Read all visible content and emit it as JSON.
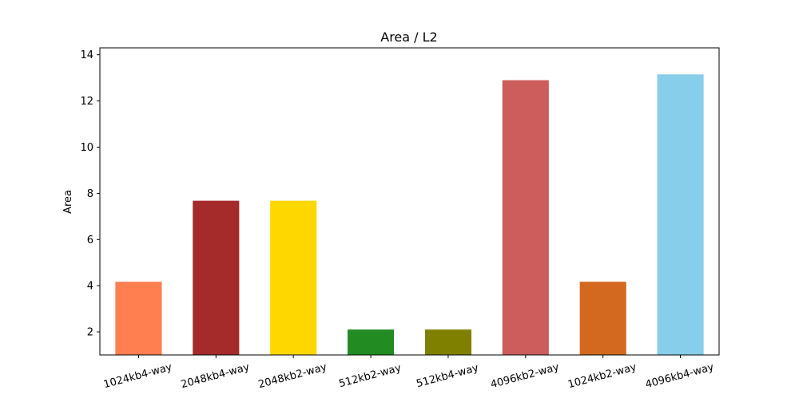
{
  "chart_data": {
    "type": "bar",
    "title": "Area / L2",
    "xlabel": "",
    "ylabel": "Area",
    "categories": [
      "1024kb4-way",
      "2048kb4-way",
      "2048kb2-way",
      "512kb2-way",
      "512kb4-way",
      "4096kb2-way",
      "1024kb2-way",
      "4096kb4-way"
    ],
    "values": [
      4.17,
      7.68,
      7.68,
      2.1,
      2.1,
      12.9,
      4.17,
      13.15
    ],
    "colors": [
      "#ff7f50",
      "#a52a2a",
      "#ffd700",
      "#228b22",
      "#808000",
      "#cd5c5c",
      "#d2691e",
      "#87ceeb"
    ],
    "ylim": [
      1.0,
      14.3
    ],
    "yticks": [
      2,
      4,
      6,
      8,
      10,
      12,
      14
    ],
    "grid": false,
    "legend": "none"
  }
}
